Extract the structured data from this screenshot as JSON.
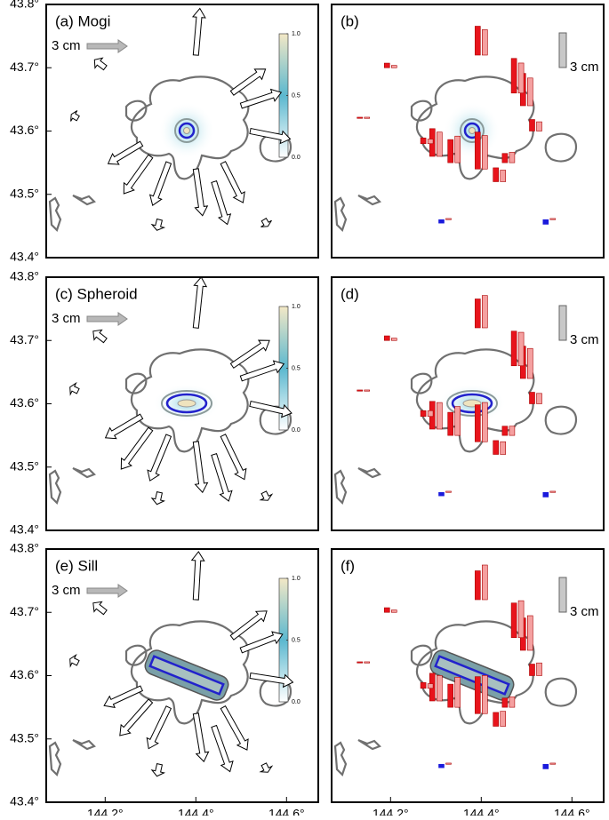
{
  "stations": {
    "lon": [
      144.4,
      144.48,
      144.5,
      144.52,
      144.46,
      144.44,
      144.4,
      144.34,
      144.3,
      144.28,
      144.2,
      144.14,
      144.55,
      144.32
    ],
    "lat": [
      43.72,
      43.66,
      43.64,
      43.6,
      43.55,
      43.52,
      43.54,
      43.55,
      43.56,
      43.58,
      43.7,
      43.62,
      43.46,
      43.46
    ]
  },
  "chart_data": [
    {
      "type": "vector",
      "label": "(a) Mogi",
      "xlim": [
        144.07,
        144.67
      ],
      "ylim": [
        43.4,
        43.8
      ],
      "yticks": [
        {
          "value": 43.4,
          "label": "43.4°"
        },
        {
          "value": 43.5,
          "label": "43.5°"
        },
        {
          "value": 43.6,
          "label": "43.6°"
        },
        {
          "value": 43.7,
          "label": "43.7°"
        },
        {
          "value": 43.8,
          "label": "43.8°"
        }
      ],
      "scale": {
        "value": 3,
        "label": "3 cm"
      },
      "scale_color": "#b8b8b8",
      "color": "#ffffff",
      "colorbar": {
        "ticks": [
          {
            "value": 0,
            "label": "0.0"
          },
          {
            "value": 0.5,
            "label": "0.5"
          },
          {
            "value": 1,
            "label": "1.0"
          }
        ],
        "colors": [
          "#ffffff",
          "#5bb8cf",
          "#f3e8c6"
        ]
      },
      "east": [
        0.3,
        2.5,
        3.0,
        3.0,
        1.5,
        1.0,
        0.5,
        -1.2,
        -2.0,
        -2.5,
        -0.8,
        -0.5,
        0.3,
        -0.2
      ],
      "north": [
        3.5,
        1.8,
        1.0,
        -0.6,
        -3.0,
        -3.2,
        -3.5,
        -3.2,
        -2.8,
        -1.5,
        0.6,
        0.3,
        -0.5,
        -0.8
      ]
    },
    {
      "type": "updown",
      "label": "(b)",
      "xlim": [
        144.07,
        144.67
      ],
      "ylim": [
        43.4,
        43.8
      ],
      "scale": {
        "value": 3,
        "label": "3 cm"
      },
      "scale_color": "#c8c8c8",
      "negative_color": "#1a1adc",
      "series": [
        {
          "color": "#e8141c",
          "values": [
            2.5,
            3.0,
            2.8,
            1.0,
            0.8,
            1.2,
            3.2,
            2.0,
            2.4,
            0.5,
            0.4,
            0.1,
            -0.4,
            -0.3
          ]
        },
        {
          "color": "#f5a0a0",
          "values": [
            2.2,
            2.6,
            2.4,
            0.8,
            0.9,
            1.0,
            2.9,
            2.3,
            2.1,
            0.4,
            0.2,
            0.1,
            0.1,
            0.1
          ]
        }
      ]
    },
    {
      "type": "vector",
      "label": "(c) Spheroid",
      "xlim": [
        144.07,
        144.67
      ],
      "ylim": [
        43.4,
        43.8
      ],
      "yticks": [
        {
          "value": 43.4,
          "label": "43.4°"
        },
        {
          "value": 43.5,
          "label": "43.5°"
        },
        {
          "value": 43.6,
          "label": "43.6°"
        },
        {
          "value": 43.7,
          "label": "43.7°"
        },
        {
          "value": 43.8,
          "label": "43.8°"
        }
      ],
      "scale": {
        "value": 3,
        "label": "3 cm"
      },
      "scale_color": "#b8b8b8",
      "color": "#ffffff",
      "colorbar": {
        "ticks": [
          {
            "value": 0,
            "label": "0.0"
          },
          {
            "value": 0.5,
            "label": "0.5"
          },
          {
            "value": 1,
            "label": "1.0"
          }
        ],
        "colors": [
          "#ffffff",
          "#5bb8cf",
          "#f3e8c6"
        ]
      },
      "east": [
        0.4,
        2.8,
        3.2,
        3.1,
        1.6,
        1.1,
        0.5,
        -1.4,
        -2.2,
        -2.7,
        -0.9,
        -0.6,
        0.3,
        -0.2
      ],
      "north": [
        3.8,
        1.9,
        1.1,
        -0.7,
        -3.3,
        -3.5,
        -3.8,
        -3.4,
        -3.0,
        -1.6,
        0.7,
        0.3,
        -0.6,
        -0.9
      ]
    },
    {
      "type": "updown",
      "label": "(d)",
      "xlim": [
        144.07,
        144.67
      ],
      "ylim": [
        43.4,
        43.8
      ],
      "scale": {
        "value": 3,
        "label": "3 cm"
      },
      "scale_color": "#c8c8c8",
      "negative_color": "#1a1adc",
      "series": [
        {
          "color": "#e8141c",
          "values": [
            2.5,
            3.0,
            2.8,
            1.0,
            0.8,
            1.2,
            3.2,
            2.0,
            2.4,
            0.5,
            0.4,
            0.1,
            -0.4,
            -0.3
          ]
        },
        {
          "color": "#f5a0a0",
          "values": [
            2.8,
            2.9,
            2.6,
            0.9,
            0.8,
            1.1,
            3.4,
            2.5,
            2.3,
            0.5,
            0.2,
            0.1,
            0.1,
            0.1
          ]
        }
      ]
    },
    {
      "type": "vector",
      "label": "(e) Sill",
      "xlim": [
        144.07,
        144.67
      ],
      "ylim": [
        43.4,
        43.8
      ],
      "yticks": [
        {
          "value": 43.4,
          "label": "43.4°"
        },
        {
          "value": 43.5,
          "label": "43.5°"
        },
        {
          "value": 43.6,
          "label": "43.6°"
        },
        {
          "value": 43.7,
          "label": "43.7°"
        },
        {
          "value": 43.8,
          "label": "43.8°"
        }
      ],
      "xticks": [
        {
          "value": 144.2,
          "label": "144.2°"
        },
        {
          "value": 144.4,
          "label": "144.4°"
        },
        {
          "value": 144.6,
          "label": "144.6°"
        }
      ],
      "scale": {
        "value": 3,
        "label": "3 cm"
      },
      "scale_color": "#b8b8b8",
      "color": "#ffffff",
      "colorbar": {
        "ticks": [
          {
            "value": 0,
            "label": "0.0"
          },
          {
            "value": 0.5,
            "label": "0.5"
          },
          {
            "value": 1,
            "label": "1.0"
          }
        ],
        "colors": [
          "#ffffff",
          "#5bb8cf",
          "#f3e8c6"
        ]
      },
      "east": [
        0.2,
        2.6,
        3.1,
        3.2,
        1.8,
        1.2,
        0.6,
        -1.5,
        -2.3,
        -2.8,
        -0.9,
        -0.6,
        0.3,
        -0.2
      ],
      "north": [
        3.6,
        2.0,
        1.2,
        -0.5,
        -3.2,
        -3.4,
        -3.6,
        -3.1,
        -2.6,
        -1.3,
        0.7,
        0.3,
        -0.6,
        -0.9
      ]
    },
    {
      "type": "updown",
      "label": "(f)",
      "xlim": [
        144.07,
        144.67
      ],
      "ylim": [
        43.4,
        43.8
      ],
      "xticks": [
        {
          "value": 144.2,
          "label": "144.2°"
        },
        {
          "value": 144.4,
          "label": "144.4°"
        },
        {
          "value": 144.6,
          "label": "144.6°"
        }
      ],
      "scale": {
        "value": 3,
        "label": "3 cm"
      },
      "scale_color": "#c8c8c8",
      "negative_color": "#1a1adc",
      "series": [
        {
          "color": "#e8141c",
          "values": [
            2.5,
            3.0,
            2.8,
            1.0,
            0.8,
            1.2,
            3.2,
            2.0,
            2.4,
            0.5,
            0.4,
            0.1,
            -0.4,
            -0.3
          ]
        },
        {
          "color": "#f5a0a0",
          "values": [
            3.0,
            3.2,
            3.0,
            1.1,
            0.9,
            1.3,
            3.3,
            2.6,
            2.2,
            0.4,
            0.2,
            0.1,
            0.1,
            0.1
          ]
        }
      ]
    }
  ]
}
